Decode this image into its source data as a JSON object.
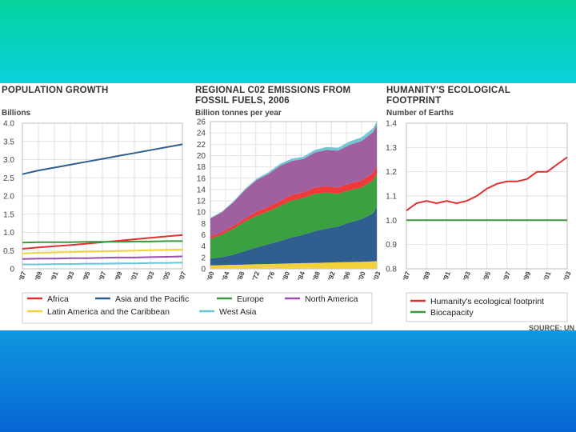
{
  "chart_data": [
    {
      "type": "line",
      "title_lines": [
        "POPULATION GROWTH"
      ],
      "ylabel": "Billions",
      "ylim": [
        0,
        4.0
      ],
      "yticks": [
        "4.0",
        "3.5",
        "3.0",
        "2.5",
        "2.0",
        "1.5",
        "1.0",
        "0.5",
        "0"
      ],
      "x": [
        1987,
        1989,
        1991,
        1993,
        1995,
        1997,
        1999,
        2001,
        2003,
        2005,
        2007
      ],
      "xticks": [
        "87",
        "89",
        "91",
        "93",
        "95",
        "97",
        "99",
        "01",
        "03",
        "05",
        "07"
      ],
      "series": [
        {
          "name": "Asia and the Pacific",
          "color": "#2e5e8e",
          "values": [
            2.6,
            2.7,
            2.78,
            2.86,
            2.94,
            3.02,
            3.1,
            3.18,
            3.26,
            3.34,
            3.42
          ]
        },
        {
          "name": "Africa",
          "color": "#e03030",
          "values": [
            0.55,
            0.59,
            0.62,
            0.65,
            0.69,
            0.73,
            0.77,
            0.81,
            0.85,
            0.89,
            0.93
          ]
        },
        {
          "name": "Europe",
          "color": "#3a9a3a",
          "values": [
            0.72,
            0.73,
            0.73,
            0.73,
            0.74,
            0.74,
            0.74,
            0.75,
            0.75,
            0.76,
            0.76
          ]
        },
        {
          "name": "Latin America and the Caribbean",
          "color": "#f2d23a",
          "values": [
            0.42,
            0.44,
            0.45,
            0.46,
            0.47,
            0.48,
            0.49,
            0.5,
            0.51,
            0.52,
            0.53
          ]
        },
        {
          "name": "North America",
          "color": "#9a4fb0",
          "values": [
            0.27,
            0.28,
            0.28,
            0.29,
            0.29,
            0.3,
            0.31,
            0.31,
            0.32,
            0.33,
            0.34
          ]
        },
        {
          "name": "West Asia",
          "color": "#6cc4d8",
          "values": [
            0.12,
            0.12,
            0.13,
            0.13,
            0.14,
            0.14,
            0.15,
            0.15,
            0.16,
            0.16,
            0.17
          ]
        }
      ]
    },
    {
      "type": "area",
      "title_lines": [
        "REGIONAL C02 EMISSIONS FROM",
        "FOSSIL FUELS, 2006"
      ],
      "ylabel": "Billion tonnes per year",
      "ylim": [
        0,
        26
      ],
      "yticks": [
        "26",
        "24",
        "22",
        "20",
        "18",
        "16",
        "14",
        "12",
        "10",
        "8",
        "6",
        "4",
        "2",
        "0"
      ],
      "x": [
        1960,
        1963,
        1966,
        1969,
        1972,
        1975,
        1978,
        1981,
        1984,
        1987,
        1990,
        1993,
        1996,
        1999,
        2002,
        2003
      ],
      "xticks": [
        "60",
        "64",
        "68",
        "72",
        "76",
        "80",
        "84",
        "88",
        "92",
        "96",
        "00",
        "03"
      ],
      "stacked": true,
      "series": [
        {
          "name": "Latin America and the Caribbean",
          "color": "#f2d23a",
          "values": [
            0.6,
            0.65,
            0.7,
            0.75,
            0.8,
            0.85,
            0.9,
            0.95,
            1.0,
            1.05,
            1.1,
            1.15,
            1.2,
            1.25,
            1.3,
            1.35
          ]
        },
        {
          "name": "Asia and the Pacific",
          "color": "#2f5f8f",
          "values": [
            1.2,
            1.4,
            1.8,
            2.4,
            3.0,
            3.5,
            4.0,
            4.6,
            5.0,
            5.6,
            6.0,
            6.3,
            7.0,
            7.5,
            8.5,
            9.5
          ]
        },
        {
          "name": "Europe",
          "color": "#3aa040",
          "values": [
            3.5,
            4.0,
            4.6,
            5.2,
            5.6,
            5.8,
            6.2,
            6.5,
            6.5,
            6.6,
            6.4,
            5.8,
            5.7,
            5.6,
            5.8,
            6.0
          ]
        },
        {
          "name": "Africa",
          "color": "#ee3a3a",
          "values": [
            0.4,
            0.45,
            0.5,
            0.6,
            0.7,
            0.8,
            0.9,
            1.0,
            1.0,
            1.1,
            1.1,
            1.1,
            1.2,
            1.2,
            1.3,
            1.3
          ]
        },
        {
          "name": "North America",
          "color": "#a060a0",
          "values": [
            3.2,
            3.5,
            4.2,
            5.0,
            5.6,
            5.8,
            6.2,
            6.0,
            5.9,
            6.2,
            6.4,
            6.5,
            6.8,
            7.0,
            7.2,
            7.3
          ]
        },
        {
          "name": "West Asia",
          "color": "#70c8d4",
          "values": [
            0.1,
            0.12,
            0.15,
            0.2,
            0.25,
            0.3,
            0.35,
            0.4,
            0.4,
            0.45,
            0.5,
            0.55,
            0.6,
            0.65,
            0.7,
            0.75
          ]
        }
      ]
    },
    {
      "type": "line",
      "title_lines": [
        "HUMANITY'S ECOLOGICAL",
        "FOOTPRINT"
      ],
      "ylabel": "Number of Earths",
      "ylim": [
        0.8,
        1.4
      ],
      "yticks": [
        "1.4",
        "1.3",
        "1.2",
        "1.1",
        "1.0",
        "0.9",
        "0.8"
      ],
      "x": [
        1987,
        1988,
        1989,
        1990,
        1991,
        1992,
        1993,
        1994,
        1995,
        1996,
        1997,
        1998,
        1999,
        2000,
        2001,
        2002,
        2003
      ],
      "xticks": [
        "87",
        "89",
        "91",
        "93",
        "95",
        "97",
        "99",
        "01",
        "03"
      ],
      "series": [
        {
          "name": "Humanity's ecological footprint",
          "color": "#e03030",
          "values": [
            1.04,
            1.07,
            1.08,
            1.07,
            1.08,
            1.07,
            1.08,
            1.1,
            1.13,
            1.15,
            1.16,
            1.16,
            1.17,
            1.2,
            1.2,
            1.23,
            1.26
          ]
        },
        {
          "name": "Biocapacity",
          "color": "#3a9a3a",
          "values": [
            1.0,
            1.0,
            1.0,
            1.0,
            1.0,
            1.0,
            1.0,
            1.0,
            1.0,
            1.0,
            1.0,
            1.0,
            1.0,
            1.0,
            1.0,
            1.0,
            1.0
          ]
        }
      ]
    }
  ],
  "legend_left": [
    {
      "label": "Africa",
      "color": "#e03030"
    },
    {
      "label": "Asia and the Pacific",
      "color": "#2e5e8e"
    },
    {
      "label": "Europe",
      "color": "#3a9a3a"
    },
    {
      "label": "North America",
      "color": "#9a4fb0"
    },
    {
      "label": "Latin America and the Caribbean",
      "color": "#f2d23a"
    },
    {
      "label": "West Asia",
      "color": "#6cc4d8"
    }
  ],
  "legend_right": [
    {
      "label": "Humanity's ecological footprint",
      "color": "#e03030"
    },
    {
      "label": "Biocapacity",
      "color": "#3a9a3a"
    }
  ],
  "source": "SOURCE: UN"
}
